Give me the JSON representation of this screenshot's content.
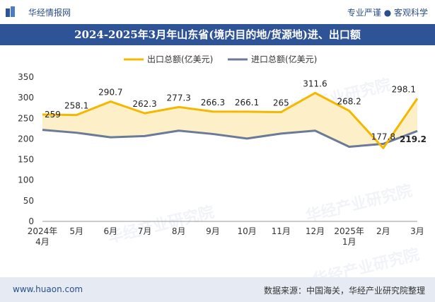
{
  "header": {
    "brand": "华经情报网",
    "tagline": "专业严谨 ● 客观科学"
  },
  "title": "2024-2025年3月年山东省(境内目的地/货源地)进、出口额",
  "footer": {
    "website": "www.huaon.com",
    "source": "数据来源：中国海关，华经产业研究院整理"
  },
  "watermark": "华经产业研究院",
  "colors": {
    "export": "#f5b800",
    "import": "#6b7a99",
    "fill": "#fdf0c8",
    "title_bar": "#2e5397"
  },
  "chart_data": {
    "type": "line",
    "categories": [
      "2024年4月",
      "5月",
      "6月",
      "7月",
      "8月",
      "9月",
      "10月",
      "11月",
      "12月",
      "2025年1月",
      "2月",
      "3月"
    ],
    "series": [
      {
        "name": "出口总额(亿美元)",
        "values": [
          259,
          258.1,
          290.7,
          262.3,
          277.3,
          266.3,
          266.1,
          265,
          311.6,
          268.2,
          177.8,
          298.1
        ],
        "labels": [
          "259",
          "258.1",
          "290.7",
          "262.3",
          "277.3",
          "266.3",
          "266.1",
          "265",
          "311.6",
          "268.2",
          "177.8",
          "298.1"
        ]
      },
      {
        "name": "进口总额(亿美元)",
        "values": [
          222,
          215,
          204,
          207,
          220,
          212,
          201,
          213,
          220,
          181,
          188,
          219.2
        ],
        "labels": [
          "",
          "",
          "",
          "",
          "",
          "",
          "",
          "",
          "",
          "",
          "",
          "219.2"
        ]
      }
    ],
    "ylim": [
      0,
      350
    ],
    "yticks": [
      0,
      50,
      100,
      150,
      200,
      250,
      300,
      350
    ],
    "legend": "top-center",
    "grid": false
  }
}
